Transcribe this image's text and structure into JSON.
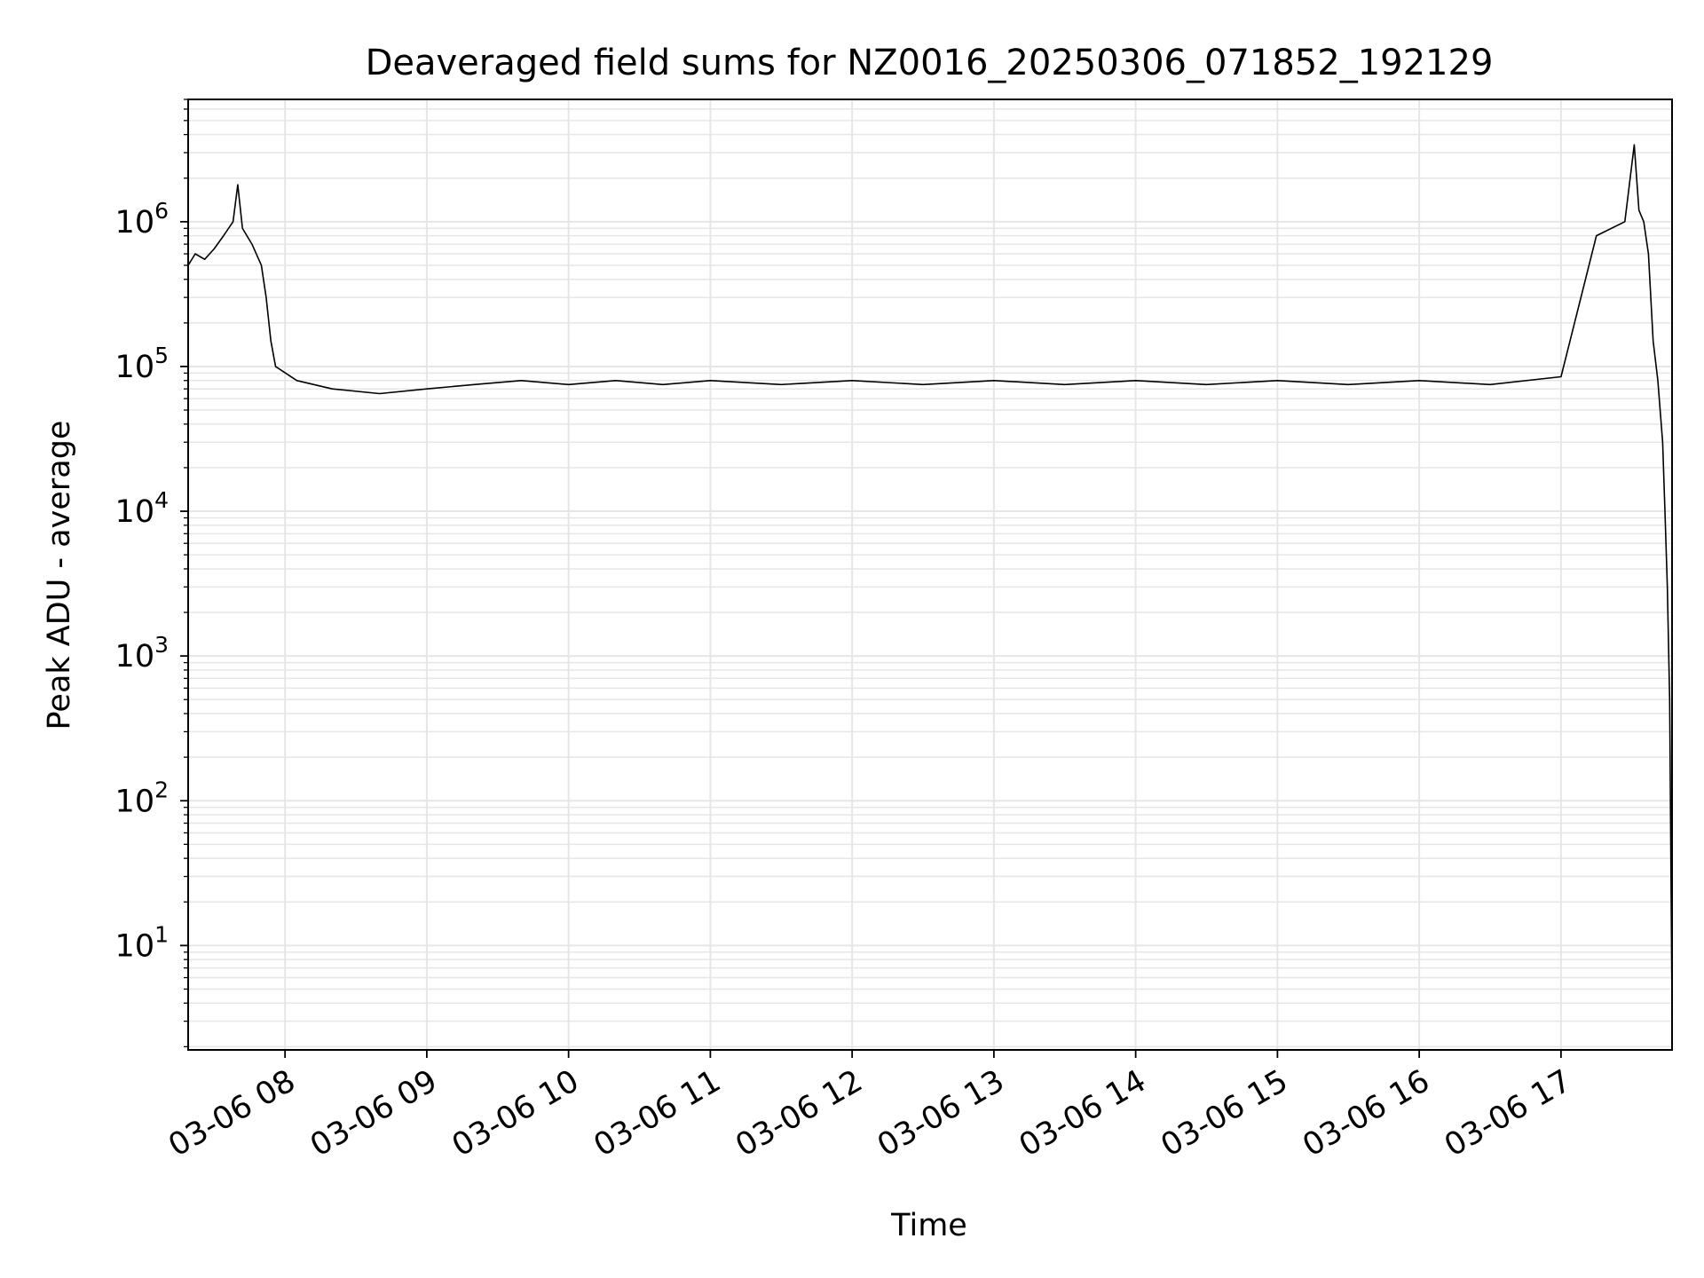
{
  "chart_data": {
    "type": "line",
    "title": "Deaveraged field sums for NZ0016_20250306_071852_192129",
    "xlabel": "Time",
    "ylabel": "Peak ADU - average",
    "x_scale": "time",
    "y_scale": "log",
    "xlim": [
      "2025-03-06 07:19",
      "2025-03-06 17:47"
    ],
    "ylim": [
      1.9,
      7000000
    ],
    "x_ticks": [
      {
        "value": "2025-03-06 08:00",
        "label": "03-06 08"
      },
      {
        "value": "2025-03-06 09:00",
        "label": "03-06 09"
      },
      {
        "value": "2025-03-06 10:00",
        "label": "03-06 10"
      },
      {
        "value": "2025-03-06 11:00",
        "label": "03-06 11"
      },
      {
        "value": "2025-03-06 12:00",
        "label": "03-06 12"
      },
      {
        "value": "2025-03-06 13:00",
        "label": "03-06 13"
      },
      {
        "value": "2025-03-06 14:00",
        "label": "03-06 14"
      },
      {
        "value": "2025-03-06 15:00",
        "label": "03-06 15"
      },
      {
        "value": "2025-03-06 16:00",
        "label": "03-06 16"
      },
      {
        "value": "2025-03-06 17:00",
        "label": "03-06 17"
      }
    ],
    "y_ticks": [
      {
        "value": 10,
        "base": "10",
        "exp": "1"
      },
      {
        "value": 100,
        "base": "10",
        "exp": "2"
      },
      {
        "value": 1000,
        "base": "10",
        "exp": "3"
      },
      {
        "value": 10000,
        "base": "10",
        "exp": "4"
      },
      {
        "value": 100000,
        "base": "10",
        "exp": "5"
      },
      {
        "value": 1000000,
        "base": "10",
        "exp": "6"
      }
    ],
    "grid": true,
    "line_color": "#000000",
    "grid_color": "#e6e6e6",
    "series": [
      {
        "x": [
          "2025-03-06 07:19",
          "2025-03-06 07:22",
          "2025-03-06 07:26",
          "2025-03-06 07:30",
          "2025-03-06 07:34",
          "2025-03-06 07:38",
          "2025-03-06 07:40",
          "2025-03-06 07:42",
          "2025-03-06 07:46",
          "2025-03-06 07:50",
          "2025-03-06 07:52",
          "2025-03-06 07:54",
          "2025-03-06 07:56",
          "2025-03-06 08:05",
          "2025-03-06 08:20",
          "2025-03-06 08:40",
          "2025-03-06 09:00",
          "2025-03-06 09:20",
          "2025-03-06 09:40",
          "2025-03-06 10:00",
          "2025-03-06 10:20",
          "2025-03-06 10:40",
          "2025-03-06 11:00",
          "2025-03-06 11:30",
          "2025-03-06 12:00",
          "2025-03-06 12:30",
          "2025-03-06 13:00",
          "2025-03-06 13:30",
          "2025-03-06 14:00",
          "2025-03-06 14:30",
          "2025-03-06 15:00",
          "2025-03-06 15:30",
          "2025-03-06 16:00",
          "2025-03-06 16:30",
          "2025-03-06 17:00",
          "2025-03-06 17:15",
          "2025-03-06 17:27",
          "2025-03-06 17:31",
          "2025-03-06 17:33",
          "2025-03-06 17:35",
          "2025-03-06 17:37",
          "2025-03-06 17:39",
          "2025-03-06 17:41",
          "2025-03-06 17:43",
          "2025-03-06 17:44",
          "2025-03-06 17:45",
          "2025-03-06 17:46",
          "2025-03-06 17:47"
        ],
        "y": [
          500000,
          600000,
          550000,
          650000,
          800000,
          1000000,
          1800000,
          900000,
          700000,
          500000,
          300000,
          150000,
          100000,
          80000,
          70000,
          65000,
          70000,
          75000,
          80000,
          75000,
          80000,
          75000,
          80000,
          75000,
          80000,
          75000,
          80000,
          75000,
          80000,
          75000,
          80000,
          75000,
          80000,
          75000,
          85000,
          800000,
          1000000,
          3400000,
          1200000,
          1000000,
          600000,
          150000,
          80000,
          30000,
          10000,
          3000,
          500,
          3.5
        ]
      }
    ]
  }
}
